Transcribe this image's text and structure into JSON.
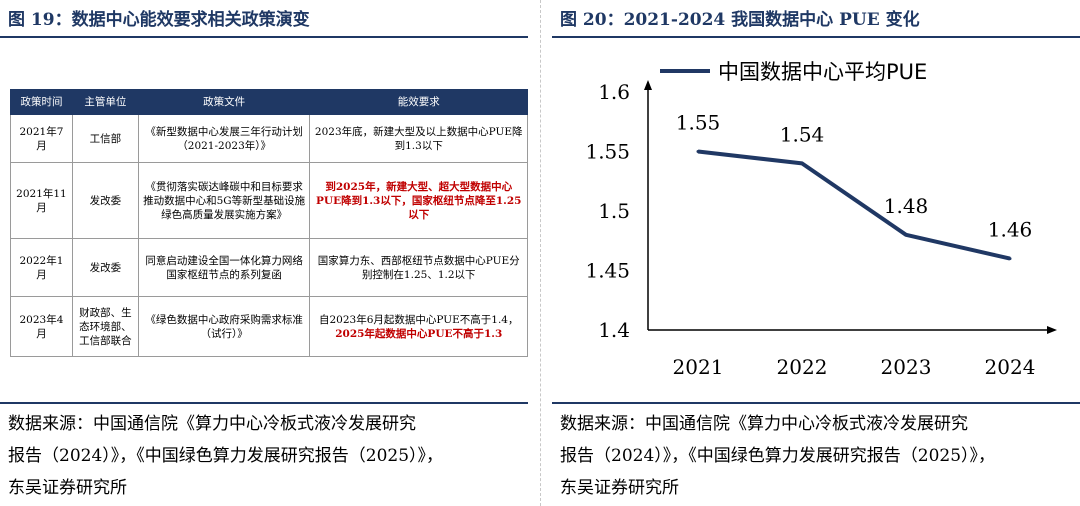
{
  "left": {
    "title": "图 19：数据中心能效要求相关政策演变",
    "table": {
      "headers": [
        "政策时间",
        "主管单位",
        "政策文件",
        "能效要求"
      ],
      "rows": [
        {
          "date": "2021年7月",
          "agency": "工信部",
          "document": "《新型数据中心发展三年行动计划（2021-2023年）》",
          "req_normal": "2023年底，新建大型及以上数据中心PUE降到1.3以下",
          "req_red": ""
        },
        {
          "date": "2021年11月",
          "agency": "发改委",
          "document": "《贯彻落实碳达峰碳中和目标要求 推动数据中心和5G等新型基础设施绿色高质量发展实施方案》",
          "req_normal": "",
          "req_red": "到2025年，新建大型、超大型数据中心PUE降到1.3以下，国家枢纽节点降至1.25以下"
        },
        {
          "date": "2022年1月",
          "agency": "发改委",
          "document": "同意启动建设全国一体化算力网络国家枢纽节点的系列复函",
          "req_normal": "国家算力东、西部枢纽节点数据中心PUE分别控制在1.25、1.2以下",
          "req_red": ""
        },
        {
          "date": "2023年4月",
          "agency": "财政部、生态环境部、工信部联合",
          "document": "《绿色数据中心政府采购需求标准（试行）》",
          "req_normal": "自2023年6月起数据中心PUE不高于1.4，",
          "req_red": "2025年起数据中心PUE不高于1.3"
        }
      ]
    },
    "source_lines": [
      "数据来源：中国通信院《算力中心冷板式液冷发展研究",
      "报告（2024）》，《中国绿色算力发展研究报告（2025）》，",
      "东吴证券研究所"
    ]
  },
  "right": {
    "title": "图 20：2021-2024 我国数据中心 PUE 变化",
    "source_lines": [
      "数据来源：中国通信院《算力中心冷板式液冷发展研究",
      "报告（2024）》，《中国绿色算力发展研究报告（2025）》，",
      "东吴证券研究所"
    ]
  },
  "chart_data": {
    "type": "line",
    "title": "",
    "xlabel": "",
    "ylabel": "",
    "categories": [
      "2021",
      "2022",
      "2023",
      "2024"
    ],
    "series": [
      {
        "name": "中国数据中心平均PUE",
        "values": [
          1.55,
          1.54,
          1.48,
          1.46
        ],
        "color": "#203864"
      }
    ],
    "data_labels": [
      "1.55",
      "1.54",
      "1.48",
      "1.46"
    ],
    "y_ticks": [
      "1.6",
      "1.55",
      "1.5",
      "1.45",
      "1.4"
    ],
    "ylim": [
      1.4,
      1.6
    ],
    "grid": false,
    "legend_position": "top"
  }
}
